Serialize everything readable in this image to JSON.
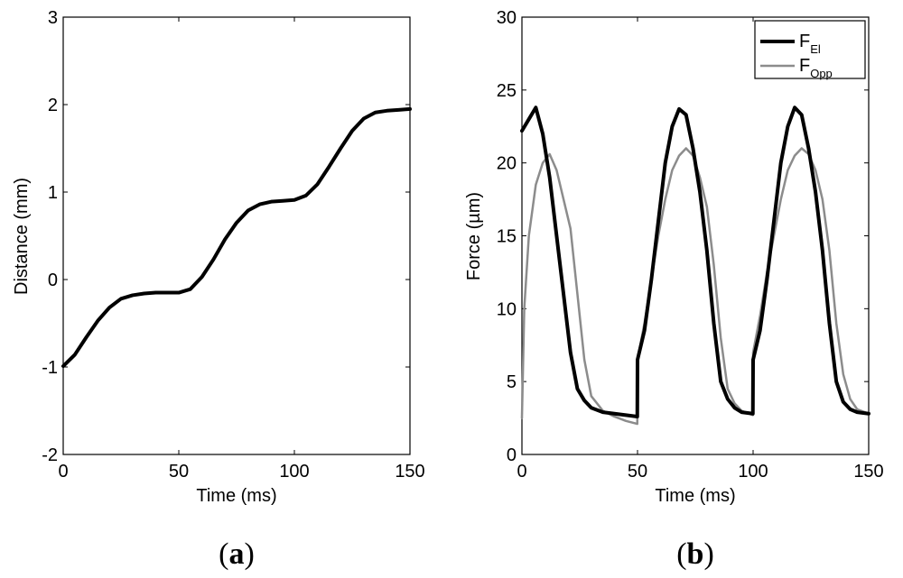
{
  "chart_data": [
    {
      "panel_label": "a",
      "type": "line",
      "title": "",
      "xlabel": "Time (ms)",
      "ylabel": "Distance (mm)",
      "xlim": [
        0,
        150
      ],
      "ylim": [
        -2,
        3
      ],
      "xticks": [
        0,
        50,
        100,
        150
      ],
      "yticks": [
        -2,
        -1,
        0,
        1,
        2,
        3
      ],
      "grid": false,
      "series": [
        {
          "name": "Distance",
          "color": "#000000",
          "x": [
            0,
            5,
            10,
            15,
            20,
            25,
            30,
            35,
            40,
            45,
            50,
            55,
            60,
            65,
            70,
            75,
            80,
            85,
            90,
            95,
            100,
            105,
            110,
            115,
            120,
            125,
            130,
            135,
            140,
            145,
            150
          ],
          "y": [
            -0.99,
            -0.86,
            -0.66,
            -0.47,
            -0.32,
            -0.22,
            -0.18,
            -0.16,
            -0.15,
            -0.15,
            -0.15,
            -0.11,
            0.03,
            0.23,
            0.46,
            0.65,
            0.79,
            0.86,
            0.89,
            0.9,
            0.91,
            0.96,
            1.09,
            1.29,
            1.5,
            1.7,
            1.84,
            1.91,
            1.93,
            1.94,
            1.95
          ]
        }
      ]
    },
    {
      "panel_label": "b",
      "type": "line",
      "title": "",
      "xlabel": "Time (ms)",
      "ylabel": "Force (µm)",
      "xlim": [
        0,
        150
      ],
      "ylim": [
        0,
        30
      ],
      "xticks": [
        0,
        50,
        100,
        150
      ],
      "yticks": [
        0,
        5,
        10,
        15,
        20,
        25,
        30
      ],
      "grid": false,
      "legend": {
        "position": "top-right",
        "entries": [
          {
            "main": "F",
            "sub": "El"
          },
          {
            "main": "F",
            "sub": "Opp"
          }
        ]
      },
      "series": [
        {
          "name": "F_El",
          "color": "#000000",
          "x": [
            0,
            3,
            6,
            9,
            12,
            15,
            18,
            21,
            24,
            27,
            30,
            35,
            40,
            45,
            49.9,
            50,
            53,
            56,
            59,
            62,
            65,
            68,
            71,
            74,
            77,
            80,
            83,
            86,
            89,
            92,
            95,
            99.9,
            100,
            103,
            106,
            109,
            112,
            115,
            118,
            121,
            124,
            127,
            130,
            133,
            136,
            139,
            142,
            145,
            150
          ],
          "y": [
            22.2,
            23.0,
            23.8,
            22.0,
            19.0,
            15.0,
            11.0,
            7.0,
            4.5,
            3.7,
            3.2,
            2.9,
            2.8,
            2.7,
            2.6,
            6.5,
            8.5,
            12.0,
            16.0,
            20.0,
            22.5,
            23.7,
            23.3,
            21.0,
            18.0,
            14.0,
            9.0,
            5.0,
            3.8,
            3.2,
            2.9,
            2.8,
            6.5,
            8.5,
            12.0,
            16.0,
            20.0,
            22.5,
            23.8,
            23.3,
            21.0,
            18.0,
            14.0,
            9.0,
            5.0,
            3.6,
            3.1,
            2.9,
            2.8
          ]
        },
        {
          "name": "F_Opp",
          "color": "#8c8c8c",
          "x": [
            0,
            1,
            3,
            6,
            9,
            12,
            15,
            18,
            21,
            24,
            27,
            30,
            35,
            40,
            45,
            49.9,
            50,
            53,
            56,
            59,
            62,
            65,
            68,
            71,
            74,
            77,
            80,
            83,
            86,
            89,
            92,
            95,
            99.9,
            100,
            103,
            106,
            109,
            112,
            115,
            118,
            121,
            124,
            127,
            130,
            133,
            136,
            139,
            142,
            145,
            150
          ],
          "y": [
            2.5,
            10.0,
            15.0,
            18.5,
            20.0,
            20.6,
            19.5,
            17.5,
            15.5,
            11.0,
            6.5,
            4.0,
            3.0,
            2.6,
            2.3,
            2.1,
            6.5,
            9.0,
            12.0,
            15.0,
            17.5,
            19.5,
            20.5,
            21.0,
            20.5,
            19.0,
            17.0,
            13.0,
            8.0,
            4.5,
            3.5,
            3.0,
            2.7,
            7.0,
            9.5,
            12.5,
            15.0,
            17.5,
            19.5,
            20.5,
            21.0,
            20.6,
            19.5,
            17.5,
            14.0,
            9.0,
            5.5,
            3.8,
            3.1,
            2.8
          ]
        }
      ]
    }
  ]
}
